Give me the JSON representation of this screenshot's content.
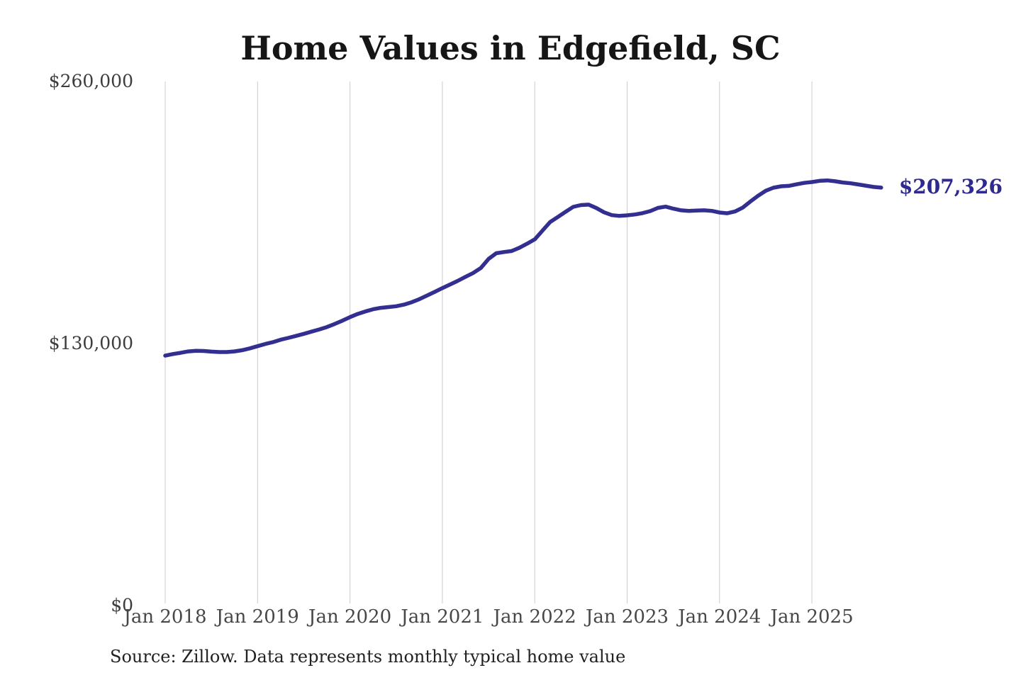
{
  "chart": {
    "title": "Home Values in Edgefield, SC",
    "end_label": "$207,326",
    "source": "Source: Zillow. Data represents monthly typical home value",
    "line_color": "#332f90",
    "end_label_color": "#2e2a8f"
  },
  "chart_data": {
    "type": "line",
    "title": "Home Values in Edgefield, SC",
    "xlabel": "",
    "ylabel": "",
    "ylim": [
      0,
      260000
    ],
    "grid": "vertical-yearly-gridlines",
    "legend": "none",
    "x_start": "Jan 2018",
    "x_end": "Oct 2025",
    "x_interval": "monthly",
    "x_tick_labels": [
      "Jan 2018",
      "Jan 2019",
      "Jan 2020",
      "Jan 2021",
      "Jan 2022",
      "Jan 2023",
      "Jan 2024",
      "Jan 2025"
    ],
    "y_ticks": [
      {
        "label": "$0",
        "value": 0
      },
      {
        "label": "$130,000",
        "value": 130000
      },
      {
        "label": "$260,000",
        "value": 260000
      }
    ],
    "end_value": 207326,
    "series": [
      {
        "name": "Monthly typical home value",
        "values": [
          124000,
          124800,
          125400,
          126100,
          126400,
          126300,
          126000,
          125800,
          125800,
          126100,
          126700,
          127600,
          128700,
          129800,
          130700,
          131900,
          132800,
          133800,
          134800,
          135900,
          137000,
          138200,
          139700,
          141300,
          143100,
          144700,
          145900,
          147000,
          147700,
          148100,
          148500,
          149300,
          150500,
          152000,
          153800,
          155600,
          157500,
          159300,
          161100,
          163100,
          165000,
          167500,
          172000,
          174800,
          175400,
          175900,
          177500,
          179500,
          181700,
          186000,
          190300,
          192800,
          195300,
          197800,
          198700,
          198900,
          197200,
          195100,
          193700,
          193300,
          193600,
          194000,
          194700,
          195700,
          197300,
          197900,
          196900,
          196100,
          195800,
          196000,
          196100,
          195800,
          195000,
          194600,
          195500,
          197400,
          200400,
          203300,
          205800,
          207300,
          208000,
          208200,
          209000,
          209700,
          210100,
          210700,
          210900,
          210500,
          209900,
          209500,
          208900,
          208300,
          207700,
          207326
        ]
      }
    ]
  }
}
